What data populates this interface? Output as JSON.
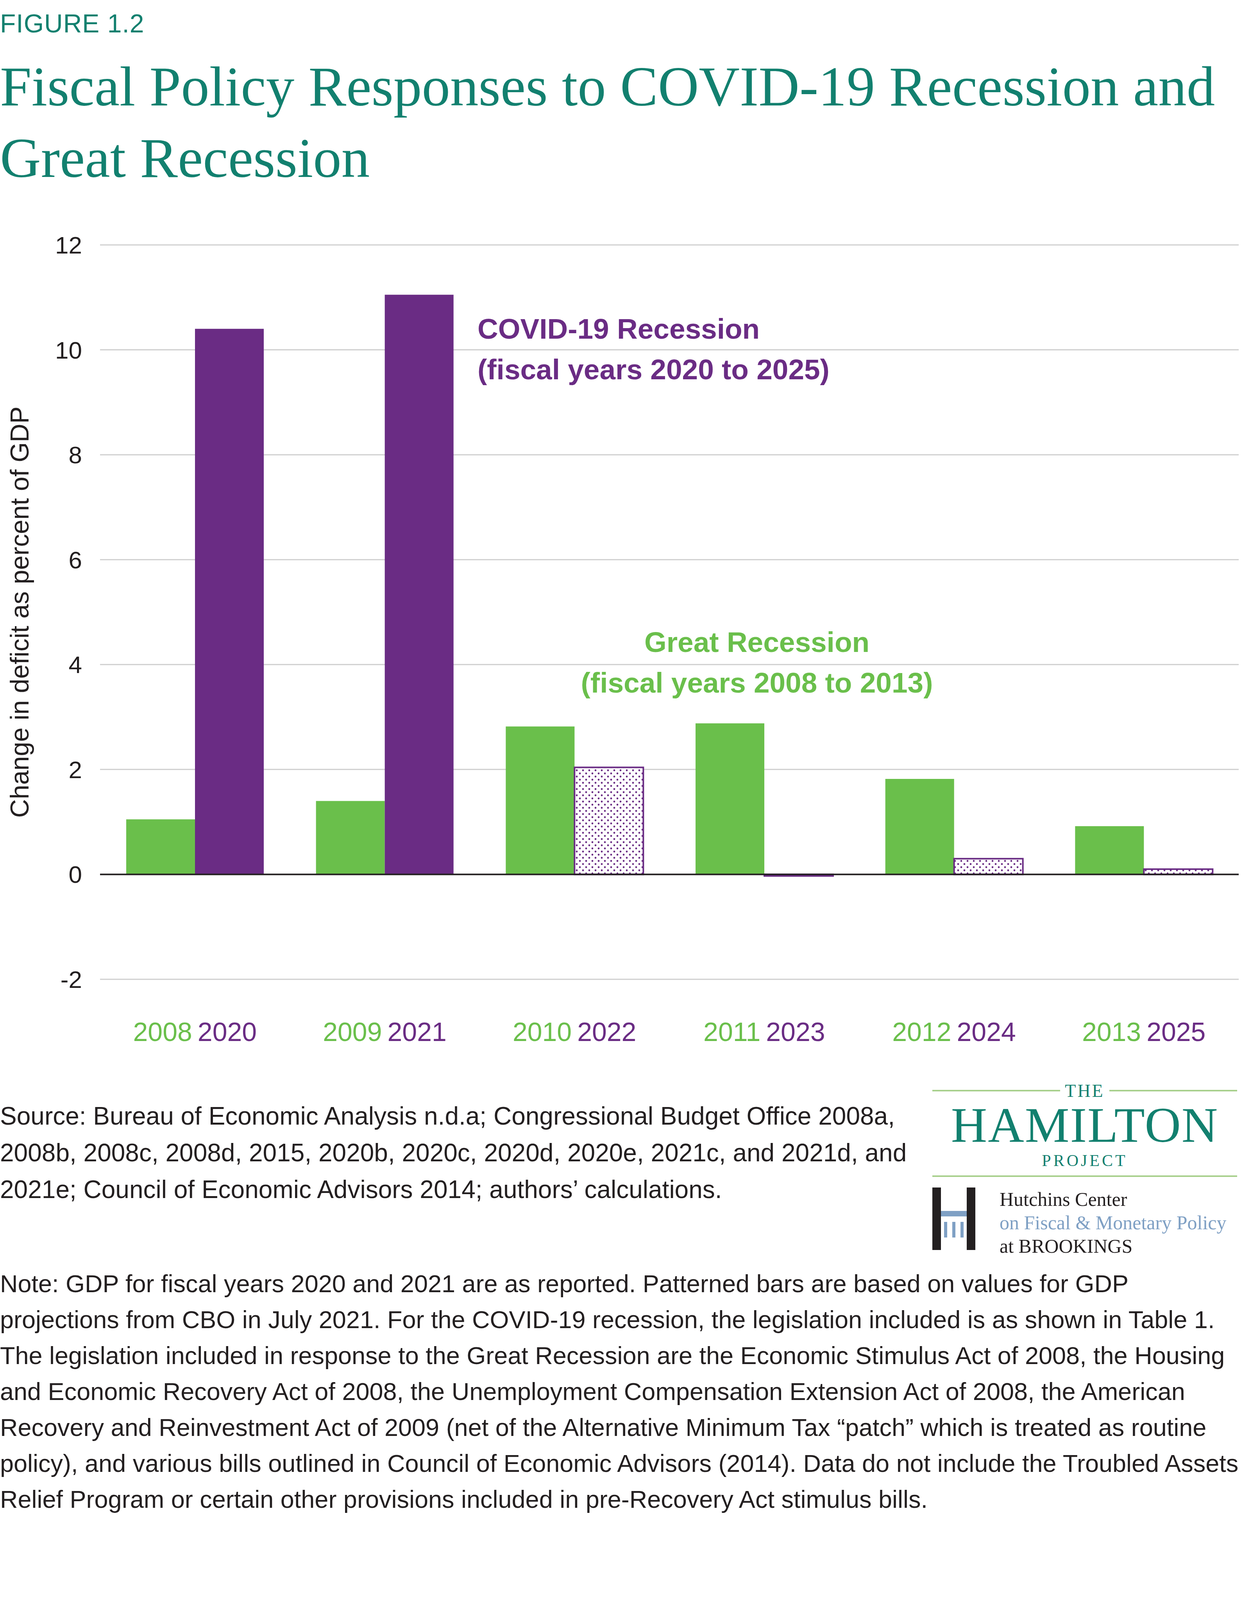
{
  "chart_data": {
    "type": "bar",
    "figure_label": "FIGURE 1.2",
    "title": "Fiscal Policy Responses to COVID-19 Recession and Great Recession",
    "y_label": "Change in deficit as percent of GDP",
    "ylim": [
      -2,
      12
    ],
    "yticks": [
      -2,
      0,
      2,
      4,
      6,
      8,
      10,
      12
    ],
    "grid": true,
    "series": [
      {
        "name": "Great Recession",
        "period": "(fiscal years 2008 to 2013)",
        "color": "#6abf4b",
        "categories": [
          "2008",
          "2009",
          "2010",
          "2011",
          "2012",
          "2013"
        ],
        "values": [
          1.05,
          1.4,
          2.82,
          2.88,
          1.82,
          0.92
        ]
      },
      {
        "name": "COVID-19 Recession",
        "period": "(fiscal years 2020 to 2025)",
        "color": "#6a2c84",
        "categories": [
          "2020",
          "2021",
          "2022",
          "2023",
          "2024",
          "2025"
        ],
        "values": [
          10.4,
          11.05,
          2.04,
          -0.03,
          0.3,
          0.1
        ],
        "patterned": [
          false,
          false,
          true,
          true,
          true,
          true
        ]
      }
    ],
    "source": "Source: Bureau of Economic Analysis n.d.a; Congressional Budget Office 2008a, 2008b, 2008c, 2008d, 2015, 2020b, 2020c, 2020d, 2020e, 2021c, and 2021d, and 2021e; Council of Economic Advisors 2014; authors’ calculations.",
    "note": "Note: GDP for fiscal years 2020 and 2021 are as reported. Patterned bars are based on values for GDP projections from CBO in July 2021. For the COVID-19 recession, the legislation included is as shown in Table 1. The legislation included in response to the Great Recession are the Economic Stimulus Act of 2008, the Housing and Economic Recovery Act of 2008, the Unemployment Compensation Extension Act of 2008, the American Recovery and Reinvestment Act of 2009 (net of the Alternative Minimum Tax “patch” which is treated as routine policy), and various bills outlined in Council of Economic Advisors (2014). Data do not include the Troubled Assets Relief Program or certain other provisions included in pre-Recovery Act stimulus bills.",
    "logos": {
      "hamilton": [
        "THE",
        "HAMILTON",
        "PROJECT"
      ],
      "hutchins": [
        "Hutchins Center",
        "on Fiscal & Monetary Policy",
        "at BROOKINGS"
      ]
    }
  }
}
